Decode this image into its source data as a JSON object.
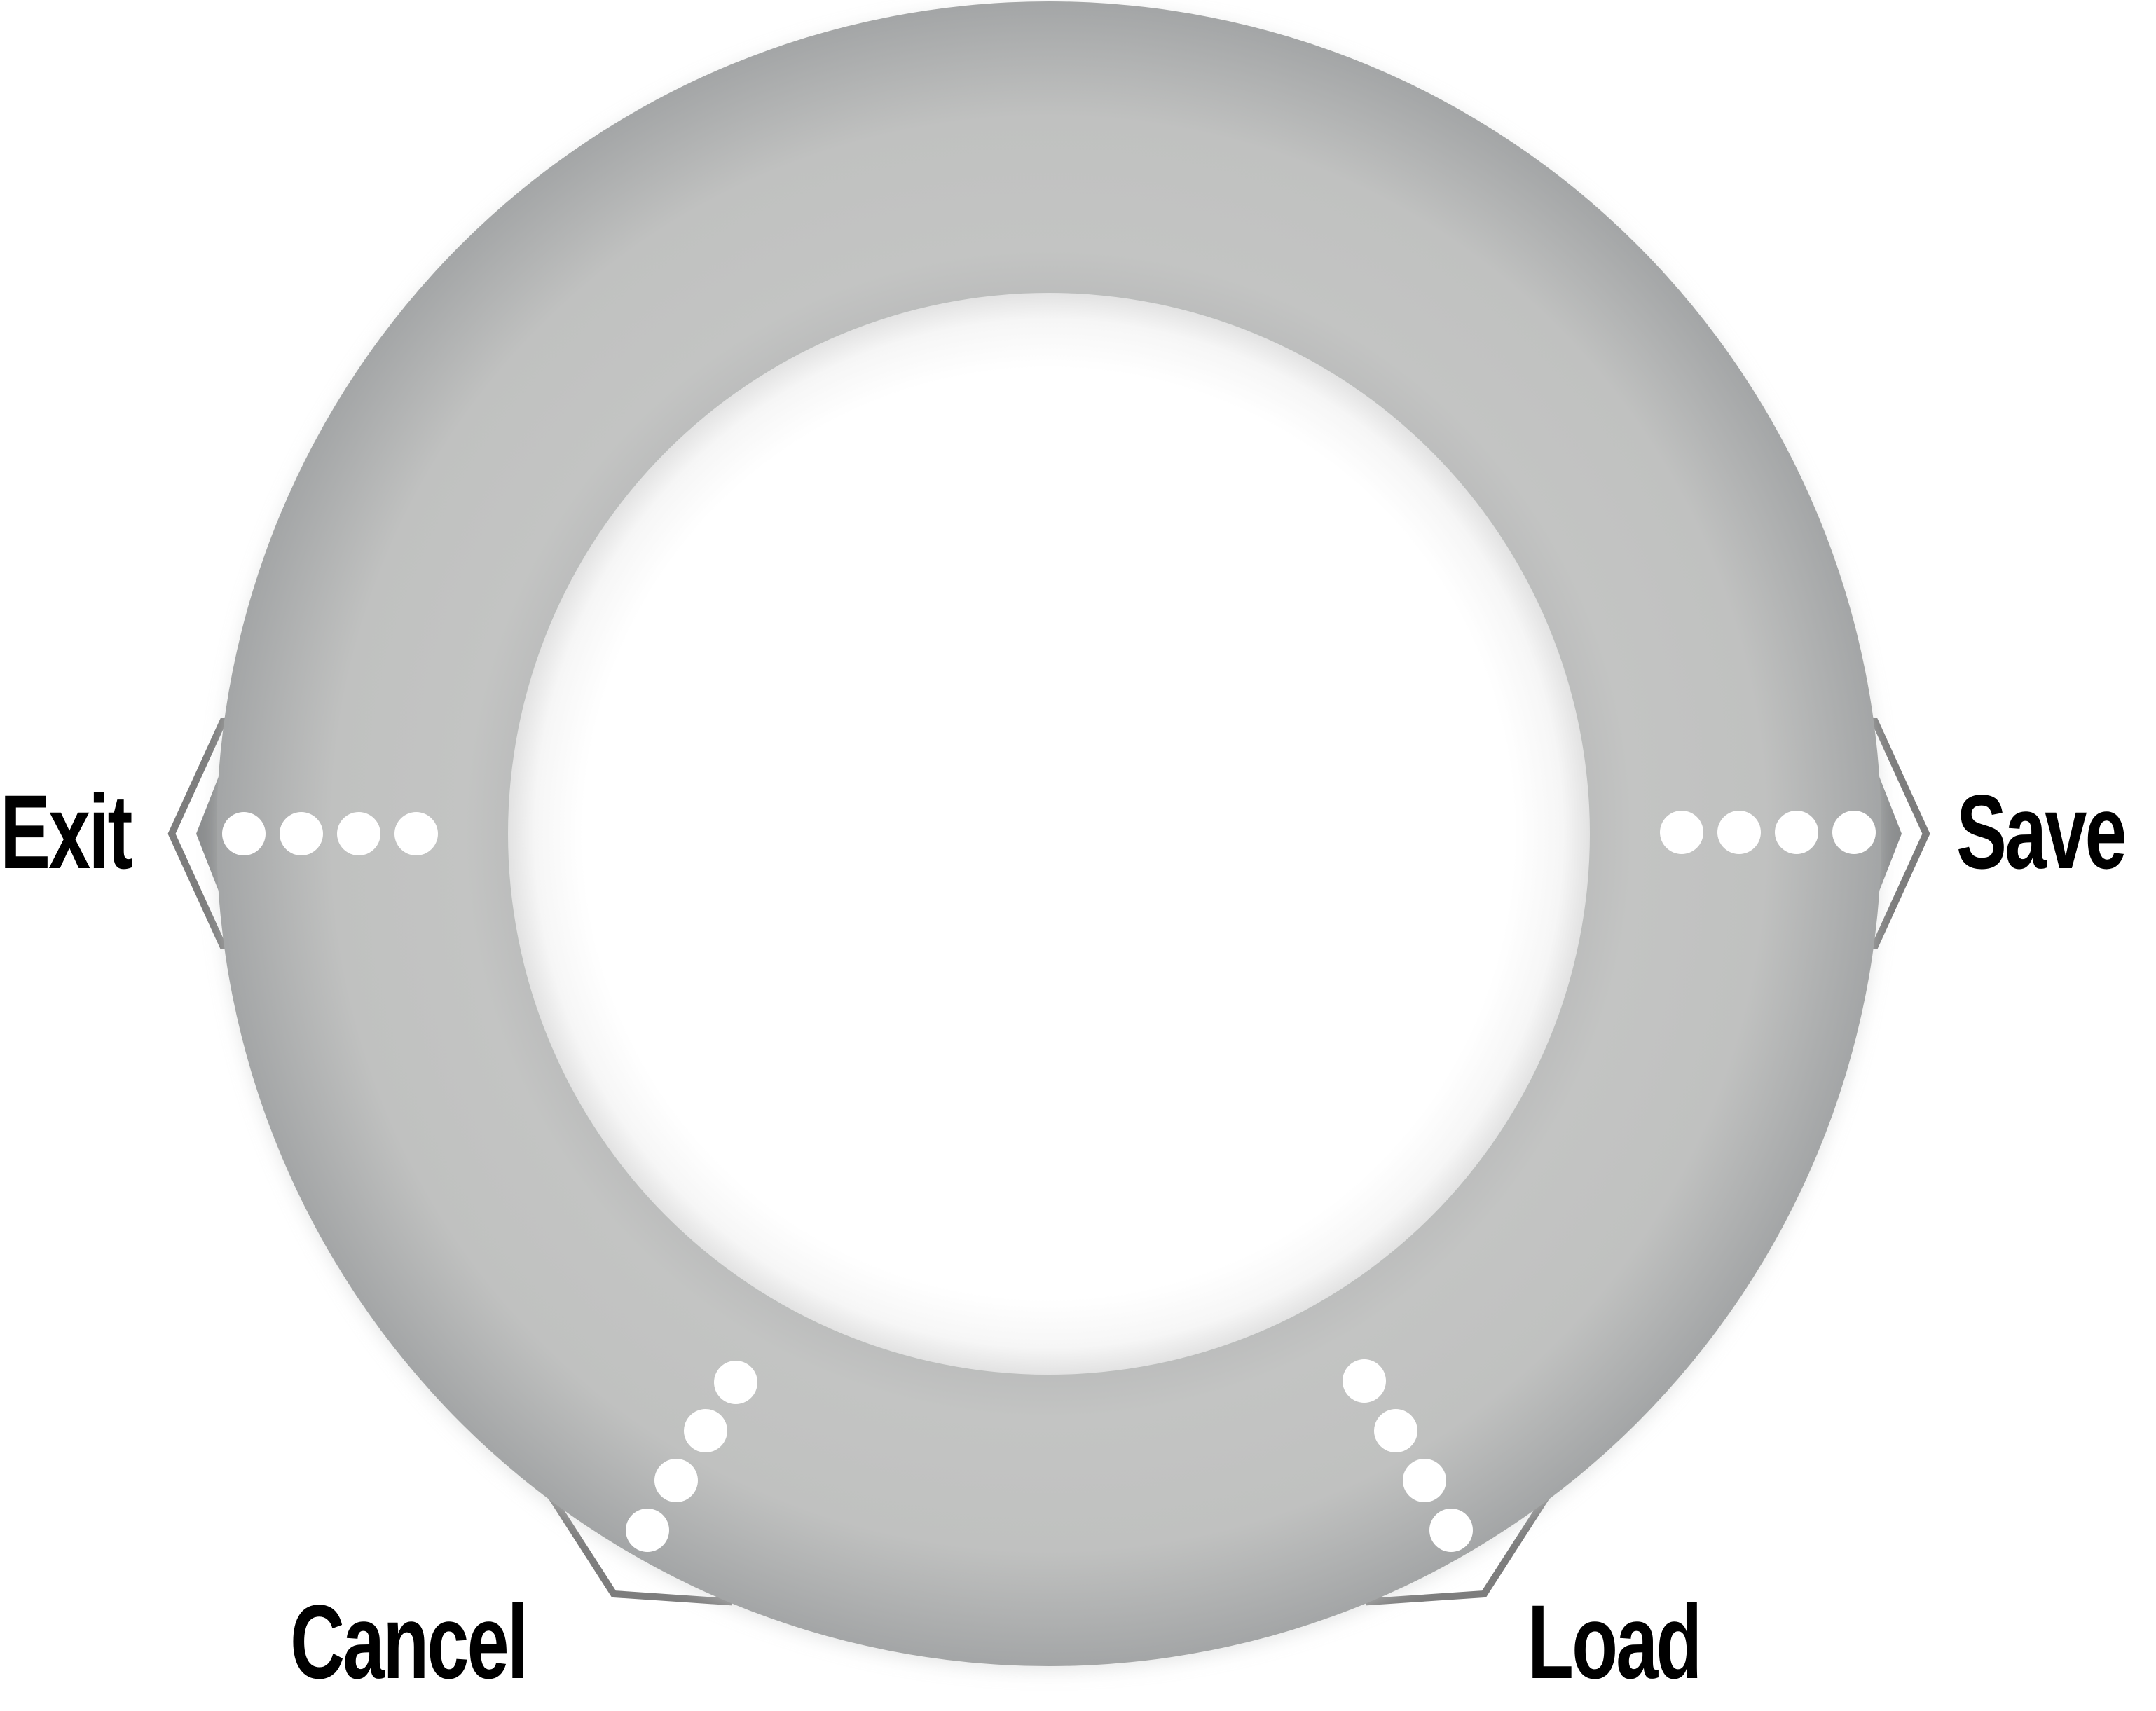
{
  "ring_menu": {
    "colors": {
      "ring_inner": "#c2c3c2",
      "ring_edge": "#a4a6a7",
      "center": "#ffffff",
      "notch_stroke": "#7d7d7d",
      "dot": "#ffffff",
      "label_text": "#000000"
    },
    "options": [
      {
        "id": "exit",
        "label": "Exit",
        "icon": "left-arrow-notch-icon",
        "indicator_dots": 4
      },
      {
        "id": "save",
        "label": "Save",
        "icon": "right-arrow-notch-icon",
        "indicator_dots": 4
      },
      {
        "id": "cancel",
        "label": "Cancel",
        "icon": "bottom-left-notch-icon",
        "indicator_dots": 4
      },
      {
        "id": "load",
        "label": "Load",
        "icon": "bottom-right-notch-icon",
        "indicator_dots": 4
      }
    ]
  }
}
